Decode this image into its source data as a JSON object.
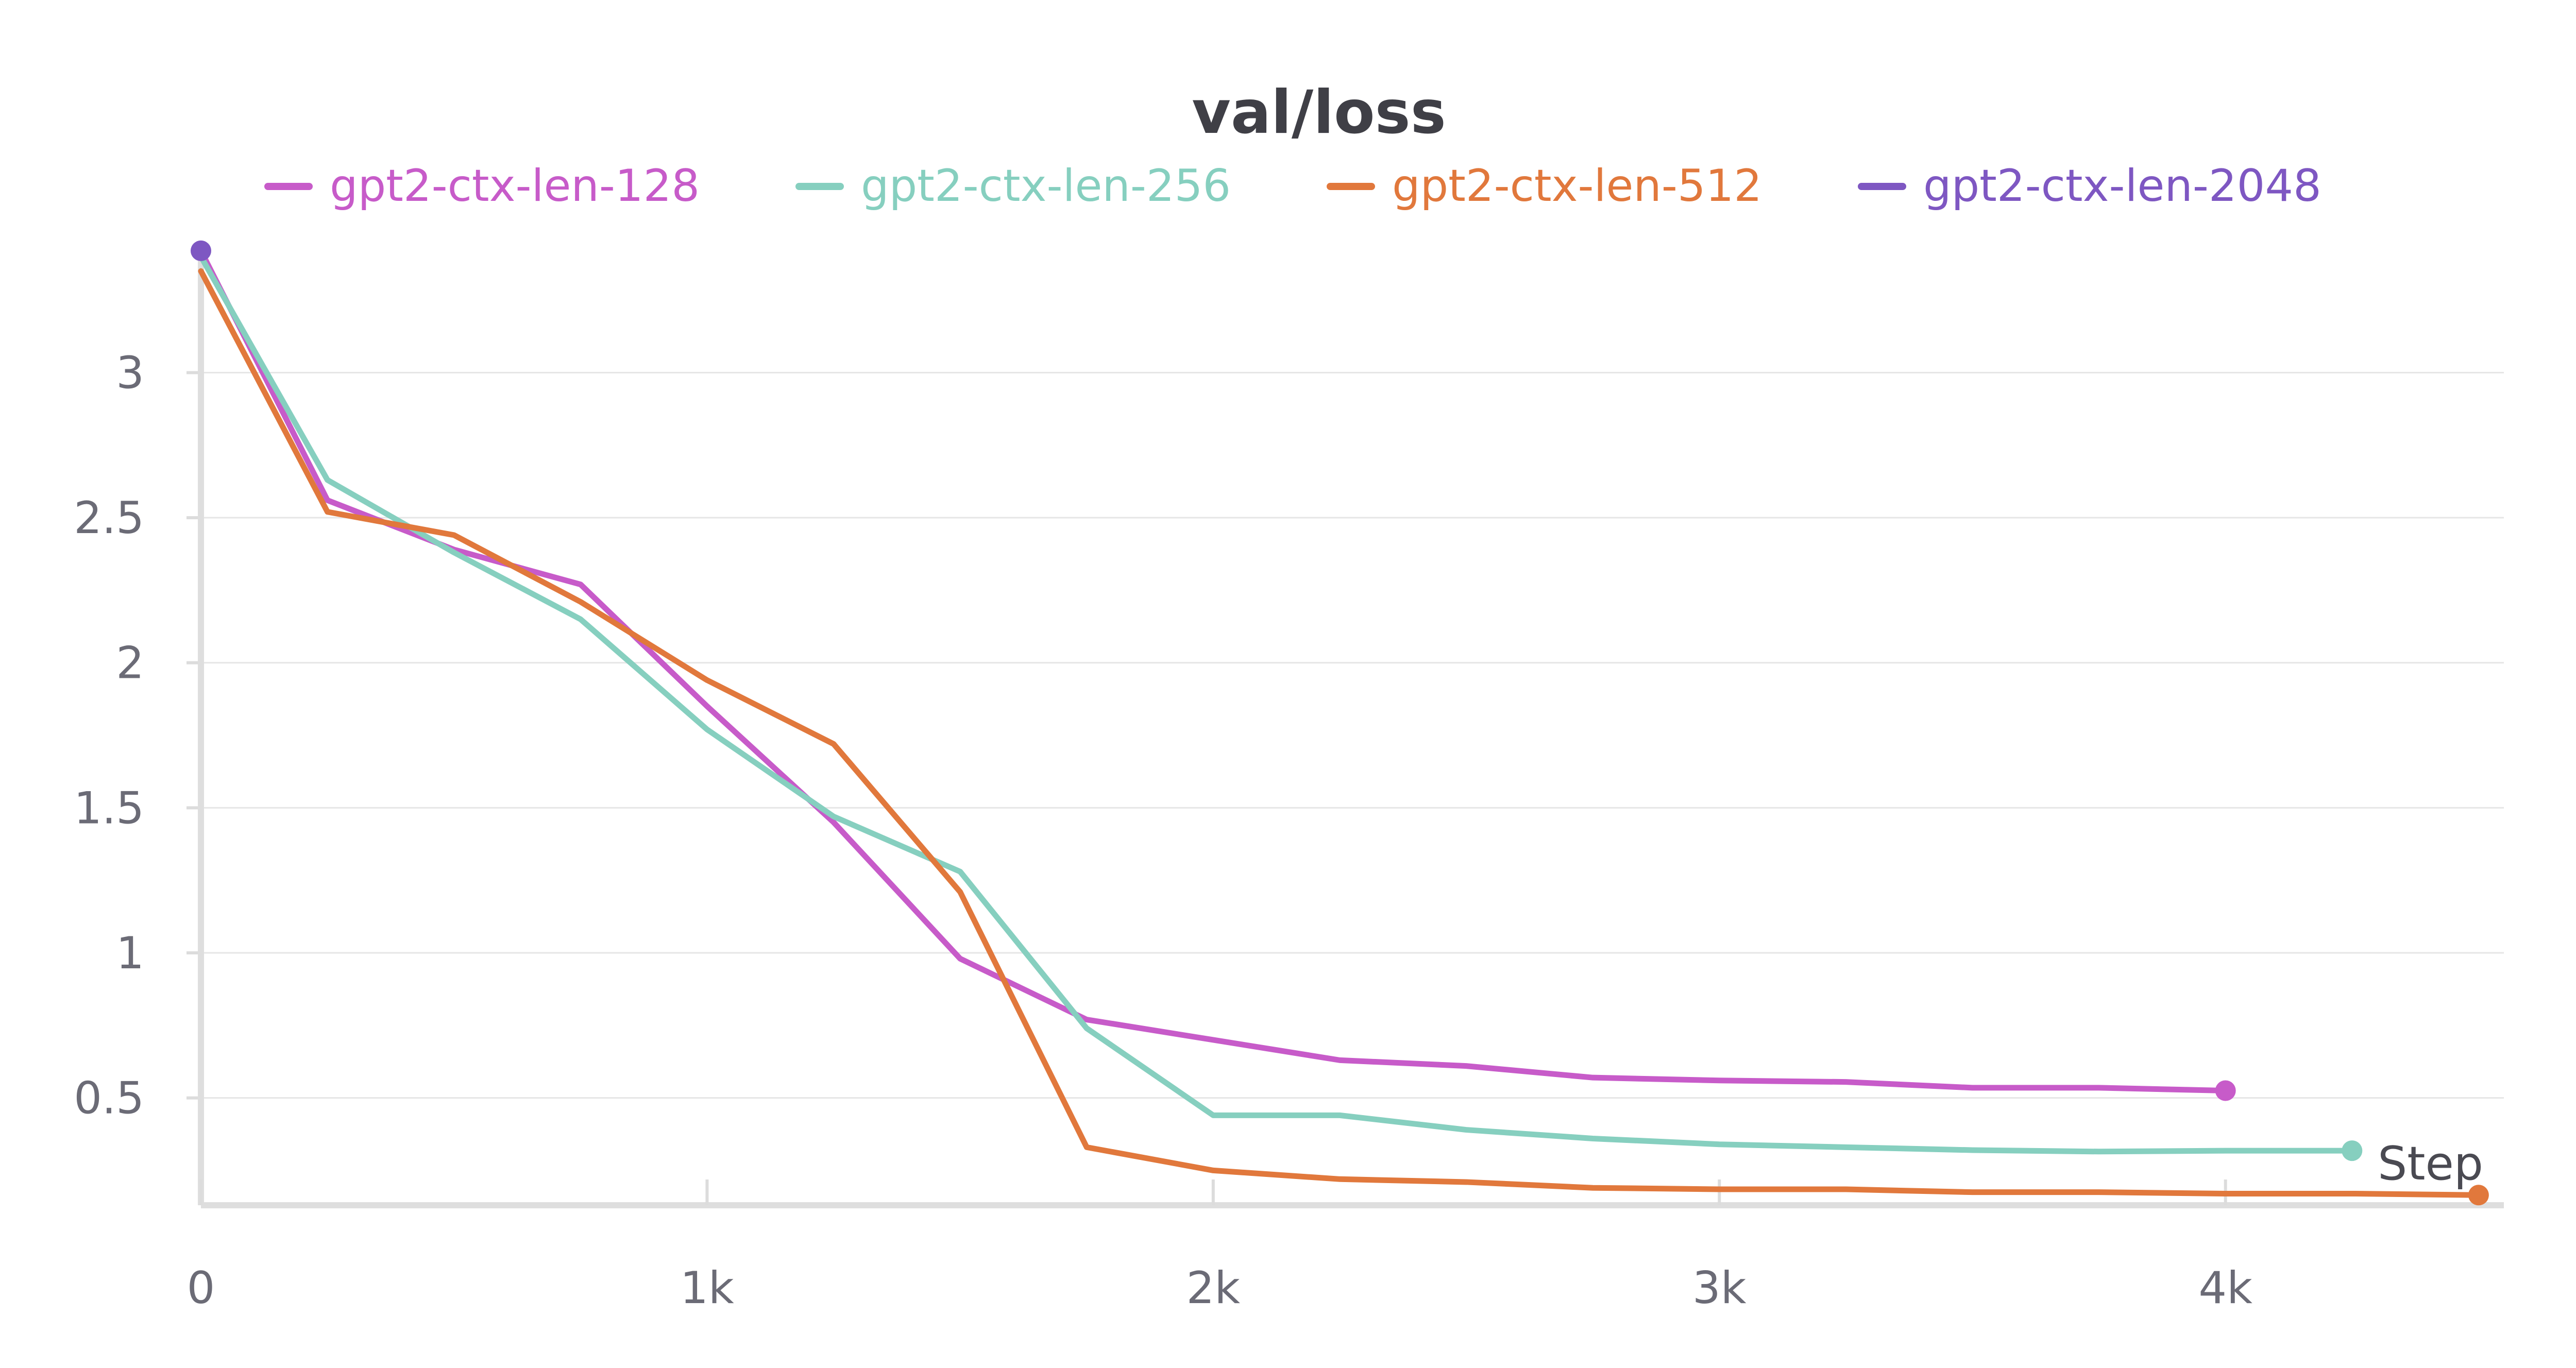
{
  "chart_data": {
    "type": "line",
    "title": "val/loss",
    "xlabel": "Step",
    "ylabel": "",
    "xlim": [
      0,
      4550
    ],
    "ylim": [
      0.13,
      3.45
    ],
    "x_ticks": [
      {
        "value": 0,
        "label": "0"
      },
      {
        "value": 1000,
        "label": "1k"
      },
      {
        "value": 2000,
        "label": "2k"
      },
      {
        "value": 3000,
        "label": "3k"
      },
      {
        "value": 4000,
        "label": "4k"
      }
    ],
    "y_ticks": [
      {
        "value": 0.5,
        "label": "0.5"
      },
      {
        "value": 1,
        "label": "1"
      },
      {
        "value": 1.5,
        "label": "1.5"
      },
      {
        "value": 2,
        "label": "2"
      },
      {
        "value": 2.5,
        "label": "2.5"
      },
      {
        "value": 3,
        "label": "3"
      }
    ],
    "grid": true,
    "legend_position": "top",
    "series": [
      {
        "name": "gpt2-ctx-len-128",
        "color": "#c75bc9",
        "x": [
          0,
          250,
          500,
          750,
          1000,
          1250,
          1500,
          1750,
          2000,
          2250,
          2500,
          2750,
          3000,
          3250,
          3500,
          3750,
          4000
        ],
        "y": [
          3.42,
          2.56,
          2.39,
          2.27,
          1.85,
          1.45,
          0.98,
          0.77,
          0.7,
          0.63,
          0.61,
          0.57,
          0.56,
          0.555,
          0.535,
          0.535,
          0.525
        ]
      },
      {
        "name": "gpt2-ctx-len-256",
        "color": "#86cfbf",
        "x": [
          0,
          250,
          500,
          750,
          1000,
          1250,
          1500,
          1750,
          2000,
          2250,
          2500,
          2750,
          3000,
          3250,
          3500,
          3750,
          4000,
          4250
        ],
        "y": [
          3.4,
          2.63,
          2.38,
          2.15,
          1.77,
          1.47,
          1.28,
          0.74,
          0.44,
          0.44,
          0.39,
          0.36,
          0.34,
          0.33,
          0.32,
          0.315,
          0.318,
          0.318
        ]
      },
      {
        "name": "gpt2-ctx-len-512",
        "color": "#e1783c",
        "x": [
          0,
          250,
          500,
          750,
          1000,
          1250,
          1500,
          1750,
          2000,
          2250,
          2500,
          2750,
          3000,
          3250,
          3500,
          3750,
          4000,
          4250,
          4500
        ],
        "y": [
          3.35,
          2.52,
          2.44,
          2.21,
          1.94,
          1.72,
          1.21,
          0.33,
          0.25,
          0.22,
          0.21,
          0.19,
          0.185,
          0.185,
          0.175,
          0.175,
          0.17,
          0.17,
          0.165
        ]
      },
      {
        "name": "gpt2-ctx-len-2048",
        "color": "#7e57c2",
        "x": [
          0
        ],
        "y": [
          3.42
        ]
      }
    ]
  }
}
